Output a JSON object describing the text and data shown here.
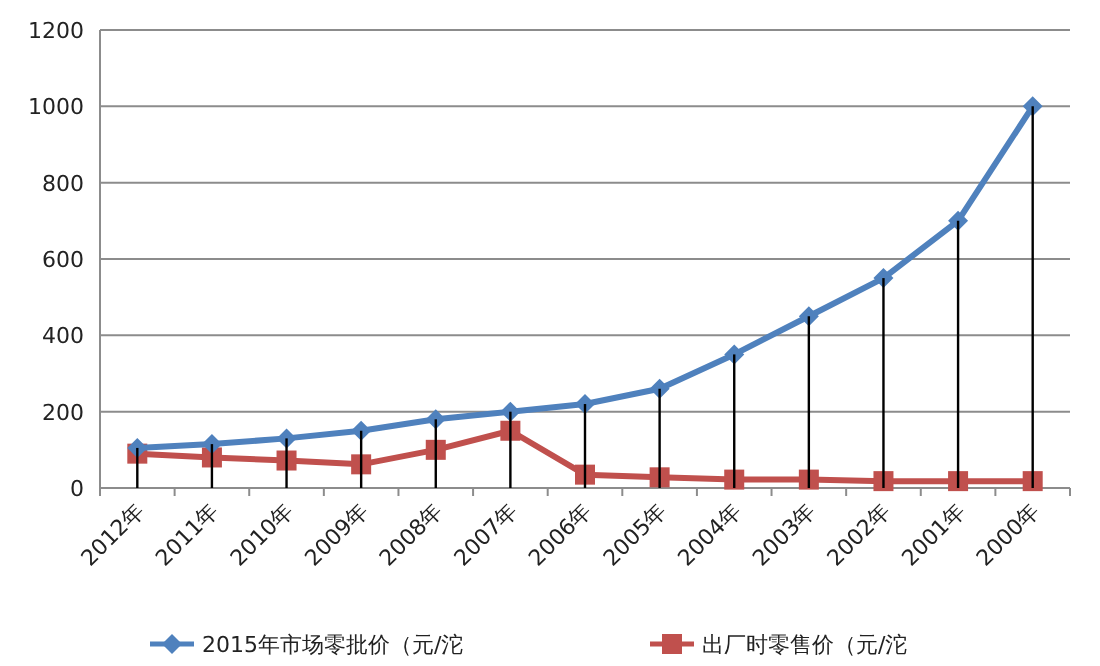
{
  "chart_data": {
    "type": "line",
    "categories": [
      "2012年",
      "2011年",
      "2010年",
      "2009年",
      "2008年",
      "2007年",
      "2006年",
      "2005年",
      "2004年",
      "2003年",
      "2002年",
      "2001年",
      "2000年"
    ],
    "series": [
      {
        "name": "2015年市场零批价（元/沱",
        "color": "#4f81bd",
        "marker": "diamond",
        "values": [
          105,
          115,
          130,
          150,
          180,
          200,
          220,
          260,
          350,
          450,
          550,
          700,
          1000
        ],
        "errors": [
          [
            0,
            105
          ],
          [
            0,
            115
          ],
          [
            0,
            130
          ],
          [
            0,
            150
          ],
          [
            0,
            180
          ],
          [
            0,
            200
          ],
          [
            0,
            220
          ],
          [
            0,
            260
          ],
          [
            0,
            350
          ],
          [
            0,
            450
          ],
          [
            0,
            550
          ],
          [
            0,
            700
          ],
          [
            0,
            1000
          ]
        ]
      },
      {
        "name": "出厂时零售价（元/沱",
        "color": "#c0504d",
        "marker": "square",
        "values": [
          90,
          80,
          72,
          62,
          100,
          150,
          35,
          28,
          22,
          22,
          18,
          18,
          18
        ]
      }
    ],
    "ylim": [
      0,
      1200
    ],
    "yticks": [
      0,
      200,
      400,
      600,
      800,
      1000,
      1200
    ],
    "grid": "y",
    "legend": "bottom",
    "line_style": "solid"
  }
}
